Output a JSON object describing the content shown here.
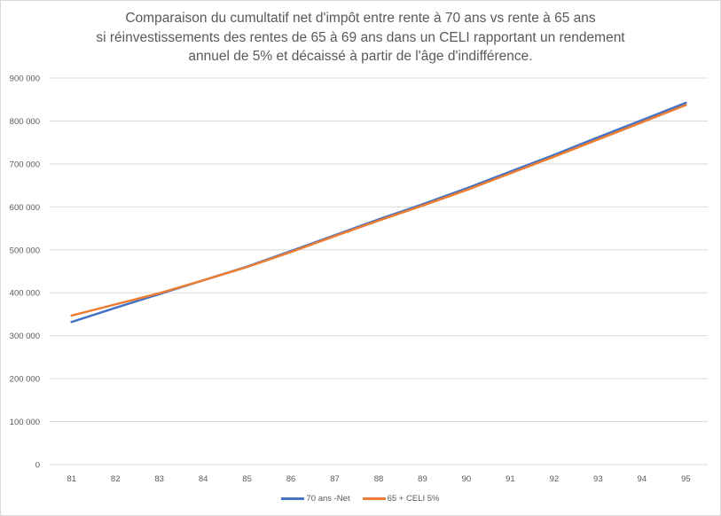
{
  "chart_data": {
    "type": "line",
    "title": "Comparaison du cumultatif net d'impôt entre rente à 70 ans vs rente à 65 ans si réinvestissements des rentes de 65 à 69 ans dans un CELI rapportant un rendement annuel de 5% et décaissé à partir de l'âge d'indifférence.",
    "title_lines": [
      "Comparaison du cumultatif net d'impôt entre rente à 70 ans vs rente à 65 ans",
      "si réinvestissements des rentes de 65 à 69 ans dans un CELI rapportant un rendement",
      "annuel de 5% et décaissé à partir de l'âge d'indifférence."
    ],
    "xlabel": "",
    "ylabel": "",
    "categories": [
      "81",
      "82",
      "83",
      "84",
      "85",
      "86",
      "87",
      "88",
      "89",
      "90",
      "91",
      "92",
      "93",
      "94",
      "95"
    ],
    "ylim": [
      0,
      900000
    ],
    "yticks": [
      "0",
      "100 000",
      "200 000",
      "300 000",
      "400 000",
      "500 000",
      "600 000",
      "700 000",
      "800 000",
      "900 000"
    ],
    "grid": true,
    "legend_position": "bottom",
    "series": [
      {
        "name": "70 ans -Net",
        "color": "#4472c4",
        "values": [
          332000,
          365000,
          397000,
          429000,
          461000,
          497000,
          534000,
          571000,
          606000,
          643000,
          682000,
          721000,
          762000,
          802000,
          842000
        ]
      },
      {
        "name": "65 + CELI 5%",
        "color": "#ed7d31",
        "values": [
          347000,
          373000,
          399000,
          429000,
          460000,
          495000,
          532000,
          568000,
          603000,
          639000,
          678000,
          717000,
          757000,
          797000,
          837000
        ]
      }
    ]
  }
}
